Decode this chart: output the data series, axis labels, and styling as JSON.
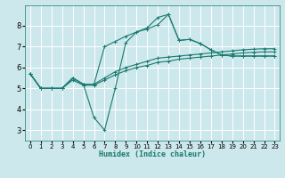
{
  "xlabel": "Humidex (Indice chaleur)",
  "bg_color": "#cce8ec",
  "grid_color": "#ffffff",
  "line_color": "#1a7a6e",
  "xlim": [
    -0.5,
    23.5
  ],
  "ylim": [
    2.5,
    9.0
  ],
  "xticks": [
    0,
    1,
    2,
    3,
    4,
    5,
    6,
    7,
    8,
    9,
    10,
    11,
    12,
    13,
    14,
    15,
    16,
    17,
    18,
    19,
    20,
    21,
    22,
    23
  ],
  "yticks": [
    3,
    4,
    5,
    6,
    7,
    8
  ],
  "lines": [
    [
      5.7,
      5.0,
      5.0,
      5.0,
      5.5,
      5.2,
      5.2,
      5.5,
      5.8,
      6.0,
      6.15,
      6.3,
      6.45,
      6.5,
      6.55,
      6.6,
      6.65,
      6.7,
      6.75,
      6.8,
      6.85,
      6.88,
      6.9,
      6.9
    ],
    [
      5.7,
      5.0,
      5.0,
      5.0,
      5.4,
      5.15,
      5.15,
      5.4,
      5.65,
      5.85,
      6.0,
      6.1,
      6.25,
      6.3,
      6.4,
      6.45,
      6.5,
      6.55,
      6.6,
      6.65,
      6.7,
      6.73,
      6.75,
      6.75
    ],
    [
      5.7,
      5.0,
      5.0,
      5.0,
      5.5,
      5.2,
      3.6,
      3.0,
      5.0,
      7.2,
      7.7,
      7.9,
      8.4,
      8.55,
      7.3,
      7.35,
      7.15,
      6.85,
      6.6,
      6.55,
      6.55,
      6.55,
      6.55,
      6.55
    ],
    [
      5.7,
      5.0,
      5.0,
      5.0,
      5.5,
      5.2,
      5.2,
      7.0,
      7.25,
      7.5,
      7.7,
      7.85,
      8.05,
      8.55,
      7.3,
      7.35,
      7.15,
      6.85,
      6.6,
      6.55,
      6.55,
      6.55,
      6.55,
      6.55
    ]
  ]
}
